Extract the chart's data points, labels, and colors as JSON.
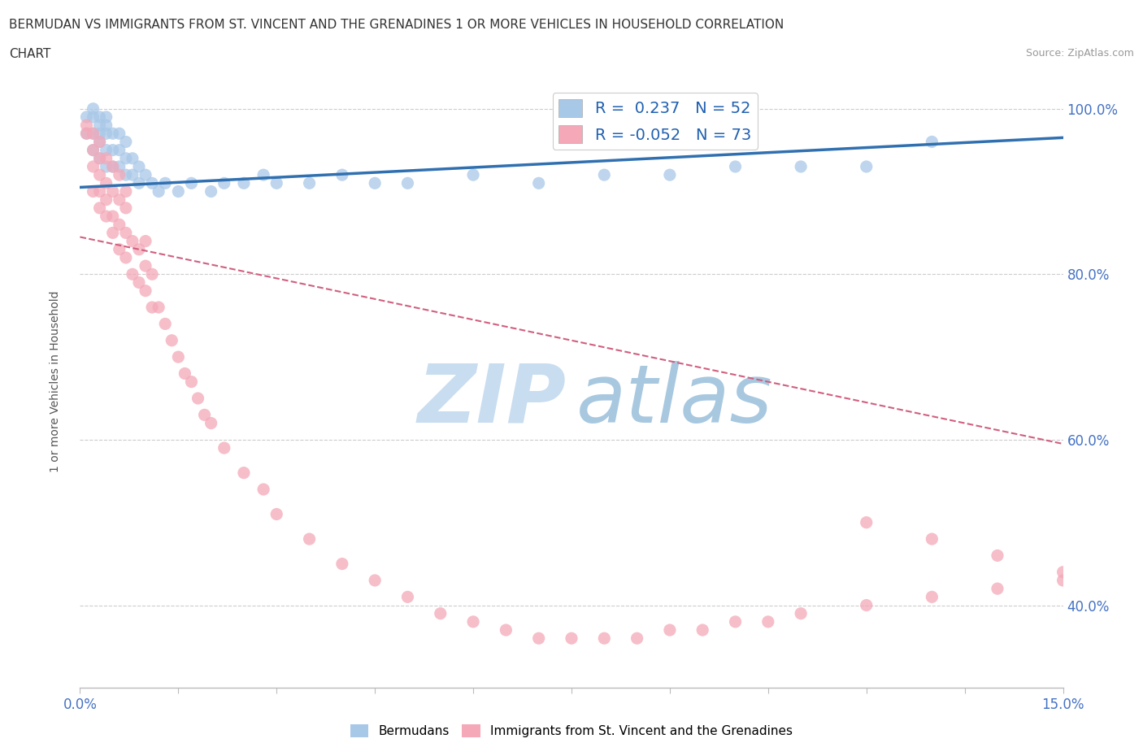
{
  "title_line1": "BERMUDAN VS IMMIGRANTS FROM ST. VINCENT AND THE GRENADINES 1 OR MORE VEHICLES IN HOUSEHOLD CORRELATION",
  "title_line2": "CHART",
  "source_text": "Source: ZipAtlas.com",
  "ylabel": "1 or more Vehicles in Household",
  "xlim": [
    0.0,
    0.15
  ],
  "ylim": [
    0.3,
    1.04
  ],
  "ytick_values": [
    0.4,
    0.6,
    0.8,
    1.0
  ],
  "ytick_labels": [
    "40.0%",
    "60.0%",
    "80.0%",
    "100.0%"
  ],
  "blue_color": "#a8c8e8",
  "pink_color": "#f4a8b8",
  "blue_line_color": "#3070b0",
  "pink_line_color": "#d06080",
  "legend_R1": "0.237",
  "legend_N1": "52",
  "legend_R2": "-0.052",
  "legend_N2": "73",
  "blue_scatter_x": [
    0.001,
    0.001,
    0.002,
    0.002,
    0.002,
    0.002,
    0.003,
    0.003,
    0.003,
    0.003,
    0.003,
    0.004,
    0.004,
    0.004,
    0.004,
    0.004,
    0.005,
    0.005,
    0.005,
    0.006,
    0.006,
    0.006,
    0.007,
    0.007,
    0.007,
    0.008,
    0.008,
    0.009,
    0.009,
    0.01,
    0.011,
    0.012,
    0.013,
    0.015,
    0.017,
    0.02,
    0.022,
    0.025,
    0.028,
    0.03,
    0.035,
    0.04,
    0.045,
    0.05,
    0.06,
    0.07,
    0.08,
    0.09,
    0.1,
    0.11,
    0.12,
    0.13
  ],
  "blue_scatter_y": [
    0.97,
    0.99,
    0.95,
    0.97,
    0.99,
    1.0,
    0.94,
    0.96,
    0.97,
    0.98,
    0.99,
    0.93,
    0.95,
    0.97,
    0.98,
    0.99,
    0.93,
    0.95,
    0.97,
    0.93,
    0.95,
    0.97,
    0.92,
    0.94,
    0.96,
    0.92,
    0.94,
    0.91,
    0.93,
    0.92,
    0.91,
    0.9,
    0.91,
    0.9,
    0.91,
    0.9,
    0.91,
    0.91,
    0.92,
    0.91,
    0.91,
    0.92,
    0.91,
    0.91,
    0.92,
    0.91,
    0.92,
    0.92,
    0.93,
    0.93,
    0.93,
    0.96
  ],
  "pink_scatter_x": [
    0.001,
    0.001,
    0.002,
    0.002,
    0.002,
    0.002,
    0.003,
    0.003,
    0.003,
    0.003,
    0.003,
    0.004,
    0.004,
    0.004,
    0.004,
    0.005,
    0.005,
    0.005,
    0.005,
    0.006,
    0.006,
    0.006,
    0.006,
    0.007,
    0.007,
    0.007,
    0.007,
    0.008,
    0.008,
    0.009,
    0.009,
    0.01,
    0.01,
    0.01,
    0.011,
    0.011,
    0.012,
    0.013,
    0.014,
    0.015,
    0.016,
    0.017,
    0.018,
    0.019,
    0.02,
    0.022,
    0.025,
    0.028,
    0.03,
    0.035,
    0.04,
    0.045,
    0.05,
    0.055,
    0.06,
    0.065,
    0.07,
    0.075,
    0.08,
    0.085,
    0.09,
    0.095,
    0.1,
    0.105,
    0.11,
    0.12,
    0.13,
    0.14,
    0.15,
    0.15,
    0.14,
    0.13,
    0.12
  ],
  "pink_scatter_y": [
    0.97,
    0.98,
    0.9,
    0.93,
    0.95,
    0.97,
    0.88,
    0.9,
    0.92,
    0.94,
    0.96,
    0.87,
    0.89,
    0.91,
    0.94,
    0.85,
    0.87,
    0.9,
    0.93,
    0.83,
    0.86,
    0.89,
    0.92,
    0.82,
    0.85,
    0.88,
    0.9,
    0.8,
    0.84,
    0.79,
    0.83,
    0.78,
    0.81,
    0.84,
    0.76,
    0.8,
    0.76,
    0.74,
    0.72,
    0.7,
    0.68,
    0.67,
    0.65,
    0.63,
    0.62,
    0.59,
    0.56,
    0.54,
    0.51,
    0.48,
    0.45,
    0.43,
    0.41,
    0.39,
    0.38,
    0.37,
    0.36,
    0.36,
    0.36,
    0.36,
    0.37,
    0.37,
    0.38,
    0.38,
    0.39,
    0.4,
    0.41,
    0.42,
    0.43,
    0.44,
    0.46,
    0.48,
    0.5
  ],
  "watermark_zip_color": "#c8ddf0",
  "watermark_atlas_color": "#a8c8e0"
}
